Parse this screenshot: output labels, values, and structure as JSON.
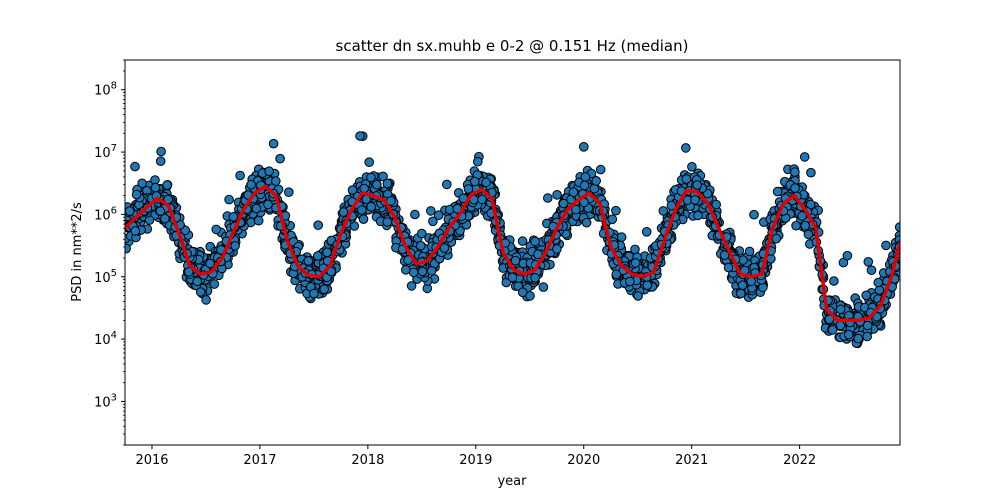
{
  "chart_data": {
    "type": "scatter",
    "title": "scatter dn sx.muhb e 0-2 @ 0.151 Hz (median)",
    "xlabel": "year",
    "ylabel": "PSD in nm**2/s",
    "xlim": [
      2015.75,
      2022.93
    ],
    "ylim": [
      200,
      300000000
    ],
    "yscale": "log",
    "grid": false,
    "legend": "none",
    "x_ticks": [
      {
        "value": 2016,
        "label": "2016"
      },
      {
        "value": 2017,
        "label": "2017"
      },
      {
        "value": 2018,
        "label": "2018"
      },
      {
        "value": 2019,
        "label": "2019"
      },
      {
        "value": 2020,
        "label": "2020"
      },
      {
        "value": 2021,
        "label": "2021"
      },
      {
        "value": 2022,
        "label": "2022"
      }
    ],
    "y_ticks": [
      {
        "value": 1000,
        "base": "10",
        "exp": "3"
      },
      {
        "value": 10000,
        "base": "10",
        "exp": "4"
      },
      {
        "value": 100000,
        "base": "10",
        "exp": "5"
      },
      {
        "value": 1000000,
        "base": "10",
        "exp": "6"
      },
      {
        "value": 10000000,
        "base": "10",
        "exp": "7"
      },
      {
        "value": 100000000,
        "base": "10",
        "exp": "8"
      }
    ],
    "colors": {
      "points": "#1f77b4",
      "point_edge": "#000000",
      "median_line": "#e00000"
    },
    "series": [
      {
        "kind": "median_line",
        "x": [
          2015.75,
          2015.85,
          2015.95,
          2016.05,
          2016.15,
          2016.25,
          2016.35,
          2016.45,
          2016.55,
          2016.65,
          2016.75,
          2016.85,
          2016.95,
          2017.05,
          2017.15,
          2017.25,
          2017.35,
          2017.45,
          2017.55,
          2017.65,
          2017.75,
          2017.85,
          2017.95,
          2018.05,
          2018.15,
          2018.25,
          2018.35,
          2018.45,
          2018.55,
          2018.65,
          2018.75,
          2018.85,
          2018.95,
          2019.05,
          2019.15,
          2019.25,
          2019.35,
          2019.45,
          2019.55,
          2019.65,
          2019.75,
          2019.85,
          2019.95,
          2020.05,
          2020.15,
          2020.25,
          2020.35,
          2020.45,
          2020.55,
          2020.65,
          2020.75,
          2020.85,
          2020.95,
          2021.05,
          2021.15,
          2021.25,
          2021.35,
          2021.45,
          2021.55,
          2021.65,
          2021.75,
          2021.85,
          2021.95,
          2022.05,
          2022.15,
          2022.25,
          2022.35,
          2022.45,
          2022.55,
          2022.65,
          2022.75,
          2022.85,
          2022.93
        ],
        "y": [
          600000,
          900000,
          1300000,
          1800000,
          1400000,
          500000,
          150000,
          110000,
          120000,
          200000,
          500000,
          1200000,
          2200000,
          2800000,
          2000000,
          400000,
          150000,
          105000,
          100000,
          150000,
          500000,
          1200000,
          2200000,
          2000000,
          1700000,
          900000,
          300000,
          160000,
          180000,
          300000,
          600000,
          1000000,
          2000000,
          2500000,
          1800000,
          250000,
          130000,
          110000,
          130000,
          250000,
          600000,
          1200000,
          1700000,
          2200000,
          1500000,
          300000,
          150000,
          110000,
          100000,
          120000,
          400000,
          1200000,
          2400000,
          2300000,
          1500000,
          600000,
          250000,
          110000,
          100000,
          110000,
          600000,
          1500000,
          2000000,
          1200000,
          600000,
          30000,
          20000,
          20000,
          20000,
          22000,
          35000,
          100000,
          350000
        ]
      }
    ]
  }
}
